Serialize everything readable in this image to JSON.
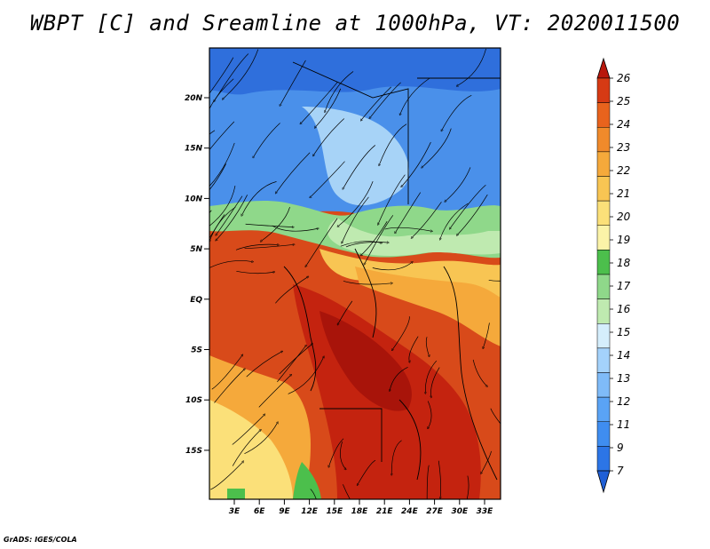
{
  "title": "WBPT [C] and Sreamline at 1000hPa, VT: 2020011500",
  "credit": "GrADS: IGES/COLA",
  "map": {
    "lat_ticks": [
      "20N",
      "15N",
      "10N",
      "5N",
      "EQ",
      "5S",
      "10S",
      "15S"
    ],
    "lon_ticks": [
      "3E",
      "6E",
      "9E",
      "12E",
      "15E",
      "18E",
      "21E",
      "24E",
      "27E",
      "30E",
      "33E"
    ]
  },
  "colorbar": {
    "levels": [
      "7",
      "9",
      "11",
      "12",
      "13",
      "14",
      "15",
      "16",
      "17",
      "18",
      "19",
      "20",
      "21",
      "22",
      "23",
      "24",
      "25",
      "26"
    ],
    "colors": [
      "#1f5fd6",
      "#2c75e6",
      "#3f8df0",
      "#5aa3f5",
      "#7fbbf8",
      "#a4d2fb",
      "#d5eefc",
      "#bfeab0",
      "#8fd88a",
      "#4cbf4c",
      "#fbf3a8",
      "#fbe079",
      "#f8c553",
      "#f5a93b",
      "#f08a2b",
      "#e8631d",
      "#d63a14",
      "#b8170c"
    ]
  }
}
